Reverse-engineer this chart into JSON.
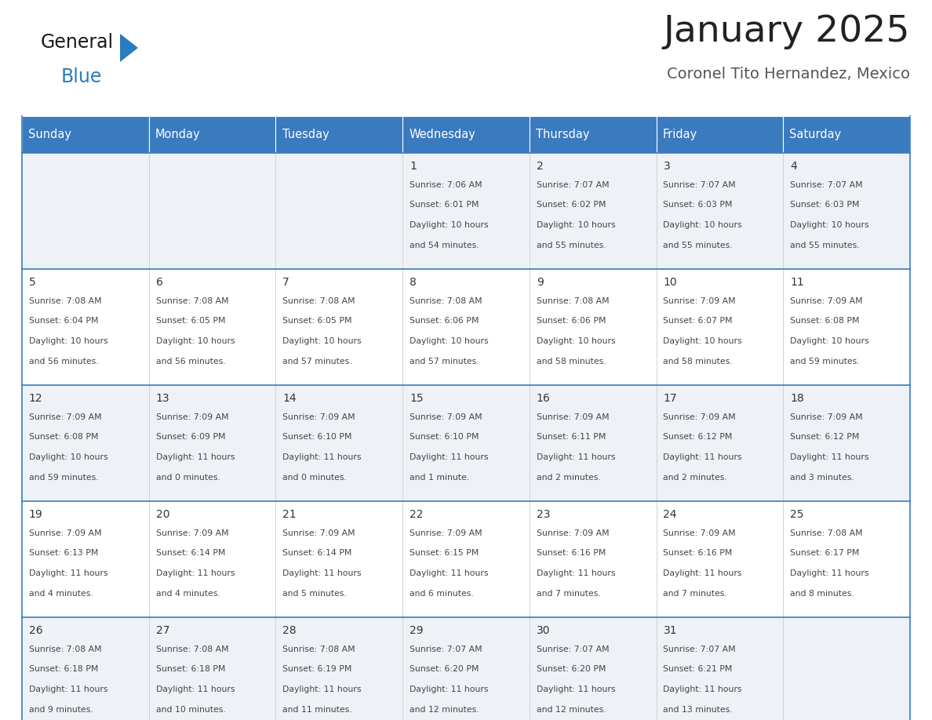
{
  "title": "January 2025",
  "subtitle": "Coronel Tito Hernandez, Mexico",
  "header_bg": "#3a7abf",
  "header_text_color": "#ffffff",
  "cell_bg_odd": "#eef2f7",
  "cell_bg_even": "#ffffff",
  "border_color": "#3a7abf",
  "row_divider_color": "#3a7abf",
  "col_divider_color": "#cccccc",
  "day_names": [
    "Sunday",
    "Monday",
    "Tuesday",
    "Wednesday",
    "Thursday",
    "Friday",
    "Saturday"
  ],
  "title_color": "#222222",
  "subtitle_color": "#555555",
  "day_number_color": "#333333",
  "cell_text_color": "#444444",
  "logo_general_color": "#1a1a1a",
  "logo_blue_color": "#2b7bbf",
  "logo_triangle_color": "#2b7bbf",
  "days": [
    {
      "day": 1,
      "col": 3,
      "row": 0,
      "sunrise": "7:06 AM",
      "sunset": "6:01 PM",
      "daylight_h": "10 hours",
      "daylight_m": "54 minutes."
    },
    {
      "day": 2,
      "col": 4,
      "row": 0,
      "sunrise": "7:07 AM",
      "sunset": "6:02 PM",
      "daylight_h": "10 hours",
      "daylight_m": "55 minutes."
    },
    {
      "day": 3,
      "col": 5,
      "row": 0,
      "sunrise": "7:07 AM",
      "sunset": "6:03 PM",
      "daylight_h": "10 hours",
      "daylight_m": "55 minutes."
    },
    {
      "day": 4,
      "col": 6,
      "row": 0,
      "sunrise": "7:07 AM",
      "sunset": "6:03 PM",
      "daylight_h": "10 hours",
      "daylight_m": "55 minutes."
    },
    {
      "day": 5,
      "col": 0,
      "row": 1,
      "sunrise": "7:08 AM",
      "sunset": "6:04 PM",
      "daylight_h": "10 hours",
      "daylight_m": "56 minutes."
    },
    {
      "day": 6,
      "col": 1,
      "row": 1,
      "sunrise": "7:08 AM",
      "sunset": "6:05 PM",
      "daylight_h": "10 hours",
      "daylight_m": "56 minutes."
    },
    {
      "day": 7,
      "col": 2,
      "row": 1,
      "sunrise": "7:08 AM",
      "sunset": "6:05 PM",
      "daylight_h": "10 hours",
      "daylight_m": "57 minutes."
    },
    {
      "day": 8,
      "col": 3,
      "row": 1,
      "sunrise": "7:08 AM",
      "sunset": "6:06 PM",
      "daylight_h": "10 hours",
      "daylight_m": "57 minutes."
    },
    {
      "day": 9,
      "col": 4,
      "row": 1,
      "sunrise": "7:08 AM",
      "sunset": "6:06 PM",
      "daylight_h": "10 hours",
      "daylight_m": "58 minutes."
    },
    {
      "day": 10,
      "col": 5,
      "row": 1,
      "sunrise": "7:09 AM",
      "sunset": "6:07 PM",
      "daylight_h": "10 hours",
      "daylight_m": "58 minutes."
    },
    {
      "day": 11,
      "col": 6,
      "row": 1,
      "sunrise": "7:09 AM",
      "sunset": "6:08 PM",
      "daylight_h": "10 hours",
      "daylight_m": "59 minutes."
    },
    {
      "day": 12,
      "col": 0,
      "row": 2,
      "sunrise": "7:09 AM",
      "sunset": "6:08 PM",
      "daylight_h": "10 hours",
      "daylight_m": "59 minutes."
    },
    {
      "day": 13,
      "col": 1,
      "row": 2,
      "sunrise": "7:09 AM",
      "sunset": "6:09 PM",
      "daylight_h": "11 hours",
      "daylight_m": "0 minutes."
    },
    {
      "day": 14,
      "col": 2,
      "row": 2,
      "sunrise": "7:09 AM",
      "sunset": "6:10 PM",
      "daylight_h": "11 hours",
      "daylight_m": "0 minutes."
    },
    {
      "day": 15,
      "col": 3,
      "row": 2,
      "sunrise": "7:09 AM",
      "sunset": "6:10 PM",
      "daylight_h": "11 hours",
      "daylight_m": "1 minute."
    },
    {
      "day": 16,
      "col": 4,
      "row": 2,
      "sunrise": "7:09 AM",
      "sunset": "6:11 PM",
      "daylight_h": "11 hours",
      "daylight_m": "2 minutes."
    },
    {
      "day": 17,
      "col": 5,
      "row": 2,
      "sunrise": "7:09 AM",
      "sunset": "6:12 PM",
      "daylight_h": "11 hours",
      "daylight_m": "2 minutes."
    },
    {
      "day": 18,
      "col": 6,
      "row": 2,
      "sunrise": "7:09 AM",
      "sunset": "6:12 PM",
      "daylight_h": "11 hours",
      "daylight_m": "3 minutes."
    },
    {
      "day": 19,
      "col": 0,
      "row": 3,
      "sunrise": "7:09 AM",
      "sunset": "6:13 PM",
      "daylight_h": "11 hours",
      "daylight_m": "4 minutes."
    },
    {
      "day": 20,
      "col": 1,
      "row": 3,
      "sunrise": "7:09 AM",
      "sunset": "6:14 PM",
      "daylight_h": "11 hours",
      "daylight_m": "4 minutes."
    },
    {
      "day": 21,
      "col": 2,
      "row": 3,
      "sunrise": "7:09 AM",
      "sunset": "6:14 PM",
      "daylight_h": "11 hours",
      "daylight_m": "5 minutes."
    },
    {
      "day": 22,
      "col": 3,
      "row": 3,
      "sunrise": "7:09 AM",
      "sunset": "6:15 PM",
      "daylight_h": "11 hours",
      "daylight_m": "6 minutes."
    },
    {
      "day": 23,
      "col": 4,
      "row": 3,
      "sunrise": "7:09 AM",
      "sunset": "6:16 PM",
      "daylight_h": "11 hours",
      "daylight_m": "7 minutes."
    },
    {
      "day": 24,
      "col": 5,
      "row": 3,
      "sunrise": "7:09 AM",
      "sunset": "6:16 PM",
      "daylight_h": "11 hours",
      "daylight_m": "7 minutes."
    },
    {
      "day": 25,
      "col": 6,
      "row": 3,
      "sunrise": "7:08 AM",
      "sunset": "6:17 PM",
      "daylight_h": "11 hours",
      "daylight_m": "8 minutes."
    },
    {
      "day": 26,
      "col": 0,
      "row": 4,
      "sunrise": "7:08 AM",
      "sunset": "6:18 PM",
      "daylight_h": "11 hours",
      "daylight_m": "9 minutes."
    },
    {
      "day": 27,
      "col": 1,
      "row": 4,
      "sunrise": "7:08 AM",
      "sunset": "6:18 PM",
      "daylight_h": "11 hours",
      "daylight_m": "10 minutes."
    },
    {
      "day": 28,
      "col": 2,
      "row": 4,
      "sunrise": "7:08 AM",
      "sunset": "6:19 PM",
      "daylight_h": "11 hours",
      "daylight_m": "11 minutes."
    },
    {
      "day": 29,
      "col": 3,
      "row": 4,
      "sunrise": "7:07 AM",
      "sunset": "6:20 PM",
      "daylight_h": "11 hours",
      "daylight_m": "12 minutes."
    },
    {
      "day": 30,
      "col": 4,
      "row": 4,
      "sunrise": "7:07 AM",
      "sunset": "6:20 PM",
      "daylight_h": "11 hours",
      "daylight_m": "12 minutes."
    },
    {
      "day": 31,
      "col": 5,
      "row": 4,
      "sunrise": "7:07 AM",
      "sunset": "6:21 PM",
      "daylight_h": "11 hours",
      "daylight_m": "13 minutes."
    }
  ]
}
